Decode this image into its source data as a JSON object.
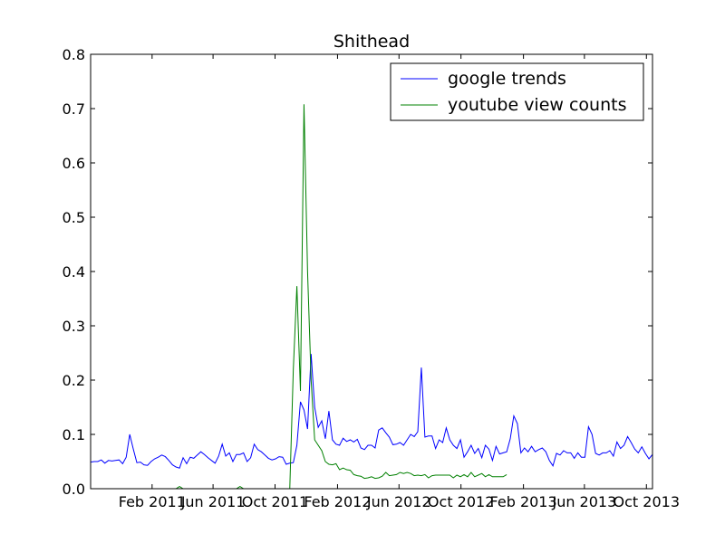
{
  "chart_data": {
    "type": "line",
    "title": "Shithead",
    "xlabel": "",
    "ylabel": "",
    "xlim": [
      "2010-10-03",
      "2013-10-13"
    ],
    "ylim": [
      0,
      0.8
    ],
    "grid": false,
    "legend_placement": "top-right",
    "x_ticks": [
      {
        "date": "2011-02-01",
        "label": "Feb 2011"
      },
      {
        "date": "2011-06-01",
        "label": "Jun 2011"
      },
      {
        "date": "2011-10-01",
        "label": "Oct 2011"
      },
      {
        "date": "2012-02-01",
        "label": "Feb 2012"
      },
      {
        "date": "2012-06-01",
        "label": "Jun 2012"
      },
      {
        "date": "2012-10-01",
        "label": "Oct 2012"
      },
      {
        "date": "2013-02-01",
        "label": "Feb 2013"
      },
      {
        "date": "2013-06-01",
        "label": "Jun 2013"
      },
      {
        "date": "2013-10-01",
        "label": "Oct 2013"
      }
    ],
    "y_ticks": [
      {
        "value": 0.0,
        "label": "0.0"
      },
      {
        "value": 0.1,
        "label": "0.1"
      },
      {
        "value": 0.2,
        "label": "0.2"
      },
      {
        "value": 0.3,
        "label": "0.3"
      },
      {
        "value": 0.4,
        "label": "0.4"
      },
      {
        "value": 0.5,
        "label": "0.5"
      },
      {
        "value": 0.6,
        "label": "0.6"
      },
      {
        "value": 0.7,
        "label": "0.7"
      },
      {
        "value": 0.8,
        "label": "0.8"
      }
    ],
    "series": [
      {
        "name": "google trends",
        "color": "#0000ff",
        "points": [
          [
            "2010-10-03",
            0.049
          ],
          [
            "2010-10-10",
            0.05
          ],
          [
            "2010-10-17",
            0.05
          ],
          [
            "2010-10-24",
            0.053
          ],
          [
            "2010-10-31",
            0.047
          ],
          [
            "2010-11-07",
            0.052
          ],
          [
            "2010-11-14",
            0.051
          ],
          [
            "2010-11-21",
            0.052
          ],
          [
            "2010-11-28",
            0.053
          ],
          [
            "2010-12-05",
            0.046
          ],
          [
            "2010-12-12",
            0.058
          ],
          [
            "2010-12-19",
            0.1
          ],
          [
            "2010-12-26",
            0.073
          ],
          [
            "2011-01-02",
            0.048
          ],
          [
            "2011-01-09",
            0.049
          ],
          [
            "2011-01-16",
            0.044
          ],
          [
            "2011-01-23",
            0.043
          ],
          [
            "2011-01-30",
            0.05
          ],
          [
            "2011-02-06",
            0.055
          ],
          [
            "2011-02-13",
            0.058
          ],
          [
            "2011-02-20",
            0.062
          ],
          [
            "2011-02-27",
            0.059
          ],
          [
            "2011-03-06",
            0.052
          ],
          [
            "2011-03-13",
            0.044
          ],
          [
            "2011-03-20",
            0.04
          ],
          [
            "2011-03-27",
            0.038
          ],
          [
            "2011-04-03",
            0.057
          ],
          [
            "2011-04-10",
            0.046
          ],
          [
            "2011-04-17",
            0.058
          ],
          [
            "2011-04-24",
            0.056
          ],
          [
            "2011-05-01",
            0.062
          ],
          [
            "2011-05-08",
            0.068
          ],
          [
            "2011-05-15",
            0.063
          ],
          [
            "2011-05-22",
            0.057
          ],
          [
            "2011-05-29",
            0.052
          ],
          [
            "2011-06-05",
            0.047
          ],
          [
            "2011-06-12",
            0.06
          ],
          [
            "2011-06-19",
            0.082
          ],
          [
            "2011-06-26",
            0.06
          ],
          [
            "2011-07-03",
            0.066
          ],
          [
            "2011-07-10",
            0.05
          ],
          [
            "2011-07-17",
            0.063
          ],
          [
            "2011-07-24",
            0.063
          ],
          [
            "2011-07-31",
            0.066
          ],
          [
            "2011-08-07",
            0.05
          ],
          [
            "2011-08-14",
            0.057
          ],
          [
            "2011-08-21",
            0.082
          ],
          [
            "2011-08-28",
            0.072
          ],
          [
            "2011-09-04",
            0.068
          ],
          [
            "2011-09-11",
            0.062
          ],
          [
            "2011-09-18",
            0.056
          ],
          [
            "2011-09-25",
            0.053
          ],
          [
            "2011-10-02",
            0.055
          ],
          [
            "2011-10-09",
            0.059
          ],
          [
            "2011-10-16",
            0.058
          ],
          [
            "2011-10-23",
            0.045
          ],
          [
            "2011-10-30",
            0.047
          ],
          [
            "2011-11-06",
            0.048
          ],
          [
            "2011-11-13",
            0.08
          ],
          [
            "2011-11-20",
            0.16
          ],
          [
            "2011-11-27",
            0.145
          ],
          [
            "2011-12-04",
            0.11
          ],
          [
            "2011-12-11",
            0.248
          ],
          [
            "2011-12-18",
            0.15
          ],
          [
            "2011-12-25",
            0.113
          ],
          [
            "2012-01-01",
            0.125
          ],
          [
            "2012-01-08",
            0.092
          ],
          [
            "2012-01-15",
            0.143
          ],
          [
            "2012-01-22",
            0.09
          ],
          [
            "2012-01-29",
            0.082
          ],
          [
            "2012-02-05",
            0.08
          ],
          [
            "2012-02-12",
            0.093
          ],
          [
            "2012-02-19",
            0.087
          ],
          [
            "2012-02-26",
            0.09
          ],
          [
            "2012-03-04",
            0.086
          ],
          [
            "2012-03-11",
            0.091
          ],
          [
            "2012-03-18",
            0.075
          ],
          [
            "2012-03-25",
            0.072
          ],
          [
            "2012-04-01",
            0.08
          ],
          [
            "2012-04-08",
            0.08
          ],
          [
            "2012-04-15",
            0.075
          ],
          [
            "2012-04-22",
            0.108
          ],
          [
            "2012-04-29",
            0.112
          ],
          [
            "2012-05-06",
            0.103
          ],
          [
            "2012-05-13",
            0.095
          ],
          [
            "2012-05-20",
            0.081
          ],
          [
            "2012-05-27",
            0.082
          ],
          [
            "2012-06-03",
            0.085
          ],
          [
            "2012-06-10",
            0.08
          ],
          [
            "2012-06-17",
            0.09
          ],
          [
            "2012-06-24",
            0.1
          ],
          [
            "2012-07-01",
            0.096
          ],
          [
            "2012-07-08",
            0.105
          ],
          [
            "2012-07-15",
            0.223
          ],
          [
            "2012-07-22",
            0.095
          ],
          [
            "2012-07-29",
            0.097
          ],
          [
            "2012-08-05",
            0.097
          ],
          [
            "2012-08-12",
            0.074
          ],
          [
            "2012-08-19",
            0.09
          ],
          [
            "2012-08-26",
            0.085
          ],
          [
            "2012-09-02",
            0.112
          ],
          [
            "2012-09-09",
            0.09
          ],
          [
            "2012-09-16",
            0.08
          ],
          [
            "2012-09-23",
            0.074
          ],
          [
            "2012-09-30",
            0.09
          ],
          [
            "2012-10-07",
            0.058
          ],
          [
            "2012-10-14",
            0.068
          ],
          [
            "2012-10-21",
            0.08
          ],
          [
            "2012-10-28",
            0.065
          ],
          [
            "2012-11-04",
            0.074
          ],
          [
            "2012-11-11",
            0.057
          ],
          [
            "2012-11-18",
            0.08
          ],
          [
            "2012-11-25",
            0.073
          ],
          [
            "2012-12-02",
            0.052
          ],
          [
            "2012-12-09",
            0.078
          ],
          [
            "2012-12-16",
            0.064
          ],
          [
            "2012-12-23",
            0.066
          ],
          [
            "2012-12-30",
            0.068
          ],
          [
            "2013-01-06",
            0.092
          ],
          [
            "2013-01-13",
            0.134
          ],
          [
            "2013-01-20",
            0.12
          ],
          [
            "2013-01-27",
            0.066
          ],
          [
            "2013-02-03",
            0.075
          ],
          [
            "2013-02-10",
            0.068
          ],
          [
            "2013-02-17",
            0.078
          ],
          [
            "2013-02-24",
            0.068
          ],
          [
            "2013-03-03",
            0.072
          ],
          [
            "2013-03-10",
            0.075
          ],
          [
            "2013-03-17",
            0.068
          ],
          [
            "2013-03-24",
            0.052
          ],
          [
            "2013-03-31",
            0.042
          ],
          [
            "2013-04-07",
            0.065
          ],
          [
            "2013-04-14",
            0.062
          ],
          [
            "2013-04-21",
            0.07
          ],
          [
            "2013-04-28",
            0.066
          ],
          [
            "2013-05-05",
            0.066
          ],
          [
            "2013-05-12",
            0.056
          ],
          [
            "2013-05-19",
            0.066
          ],
          [
            "2013-05-26",
            0.058
          ],
          [
            "2013-06-02",
            0.058
          ],
          [
            "2013-06-09",
            0.114
          ],
          [
            "2013-06-16",
            0.1
          ],
          [
            "2013-06-23",
            0.065
          ],
          [
            "2013-06-30",
            0.062
          ],
          [
            "2013-07-07",
            0.066
          ],
          [
            "2013-07-14",
            0.066
          ],
          [
            "2013-07-21",
            0.07
          ],
          [
            "2013-07-28",
            0.06
          ],
          [
            "2013-08-04",
            0.086
          ],
          [
            "2013-08-11",
            0.074
          ],
          [
            "2013-08-18",
            0.08
          ],
          [
            "2013-08-25",
            0.096
          ],
          [
            "2013-09-01",
            0.085
          ],
          [
            "2013-09-08",
            0.073
          ],
          [
            "2013-09-15",
            0.066
          ],
          [
            "2013-09-22",
            0.077
          ],
          [
            "2013-09-29",
            0.065
          ],
          [
            "2013-10-06",
            0.055
          ],
          [
            "2013-10-13",
            0.063
          ]
        ]
      },
      {
        "name": "youtube view counts",
        "color": "#008000",
        "points": [
          [
            "2010-10-03",
            0.0
          ],
          [
            "2011-03-20",
            0.0
          ],
          [
            "2011-03-27",
            0.004
          ],
          [
            "2011-04-03",
            0.0
          ],
          [
            "2011-07-17",
            0.0
          ],
          [
            "2011-07-24",
            0.004
          ],
          [
            "2011-07-31",
            0.0
          ],
          [
            "2011-10-30",
            0.0
          ],
          [
            "2011-11-06",
            0.22
          ],
          [
            "2011-11-13",
            0.373
          ],
          [
            "2011-11-20",
            0.18
          ],
          [
            "2011-11-27",
            0.708
          ],
          [
            "2011-12-04",
            0.4
          ],
          [
            "2011-12-11",
            0.2
          ],
          [
            "2011-12-18",
            0.09
          ],
          [
            "2011-12-25",
            0.08
          ],
          [
            "2012-01-01",
            0.07
          ],
          [
            "2012-01-08",
            0.05
          ],
          [
            "2012-01-15",
            0.045
          ],
          [
            "2012-01-22",
            0.044
          ],
          [
            "2012-01-29",
            0.046
          ],
          [
            "2012-02-05",
            0.035
          ],
          [
            "2012-02-12",
            0.038
          ],
          [
            "2012-02-19",
            0.035
          ],
          [
            "2012-02-26",
            0.034
          ],
          [
            "2012-03-04",
            0.026
          ],
          [
            "2012-03-11",
            0.024
          ],
          [
            "2012-03-18",
            0.023
          ],
          [
            "2012-03-25",
            0.019
          ],
          [
            "2012-04-01",
            0.02
          ],
          [
            "2012-04-08",
            0.022
          ],
          [
            "2012-04-15",
            0.019
          ],
          [
            "2012-04-22",
            0.02
          ],
          [
            "2012-04-29",
            0.023
          ],
          [
            "2012-05-06",
            0.03
          ],
          [
            "2012-05-13",
            0.024
          ],
          [
            "2012-05-20",
            0.025
          ],
          [
            "2012-05-27",
            0.026
          ],
          [
            "2012-06-03",
            0.03
          ],
          [
            "2012-06-10",
            0.028
          ],
          [
            "2012-06-17",
            0.03
          ],
          [
            "2012-06-24",
            0.028
          ],
          [
            "2012-07-01",
            0.024
          ],
          [
            "2012-07-08",
            0.025
          ],
          [
            "2012-07-15",
            0.024
          ],
          [
            "2012-07-22",
            0.026
          ],
          [
            "2012-07-29",
            0.02
          ],
          [
            "2012-08-05",
            0.024
          ],
          [
            "2012-08-12",
            0.025
          ],
          [
            "2012-08-19",
            0.025
          ],
          [
            "2012-08-26",
            0.025
          ],
          [
            "2012-09-02",
            0.025
          ],
          [
            "2012-09-09",
            0.025
          ],
          [
            "2012-09-16",
            0.02
          ],
          [
            "2012-09-23",
            0.025
          ],
          [
            "2012-09-30",
            0.022
          ],
          [
            "2012-10-07",
            0.026
          ],
          [
            "2012-10-14",
            0.022
          ],
          [
            "2012-10-21",
            0.03
          ],
          [
            "2012-10-28",
            0.022
          ],
          [
            "2012-11-04",
            0.025
          ],
          [
            "2012-11-11",
            0.028
          ],
          [
            "2012-11-18",
            0.022
          ],
          [
            "2012-11-25",
            0.026
          ],
          [
            "2012-12-02",
            0.022
          ],
          [
            "2012-12-09",
            0.022
          ],
          [
            "2012-12-16",
            0.022
          ],
          [
            "2012-12-23",
            0.022
          ],
          [
            "2012-12-30",
            0.026
          ]
        ]
      }
    ]
  },
  "colors": {
    "axes": "#000000",
    "background": "#ffffff",
    "google_trends": "#0000ff",
    "youtube_view_counts": "#008000"
  }
}
